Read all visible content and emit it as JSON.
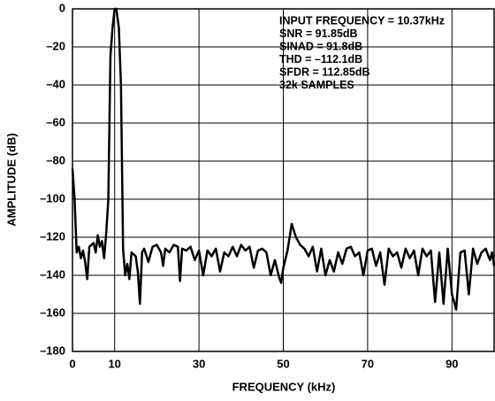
{
  "chart_data": {
    "type": "line",
    "xlabel": "FREQUENCY (kHz)",
    "ylabel": "AMPLITUDE (dB)",
    "annotations": [
      "INPUT FREQUENCY = 10.37kHz",
      "SNR = 91.85dB",
      "SINAD = 91.8dB",
      "THD = –112.1dB",
      "SFDR = 112.85dB",
      "32k SAMPLES"
    ],
    "xlim": [
      0,
      100
    ],
    "ylim": [
      -180,
      0
    ],
    "xticks": [
      0,
      10,
      30,
      50,
      70,
      90
    ],
    "yticks": [
      0,
      {
        "value": -20,
        "label": "–20"
      },
      {
        "value": -40,
        "label": "–40"
      },
      {
        "value": -60,
        "label": "–60"
      },
      {
        "value": -80,
        "label": "–80"
      },
      {
        "value": -100,
        "label": "–100"
      },
      {
        "value": -120,
        "label": "–120"
      },
      {
        "value": -140,
        "label": "–140"
      },
      {
        "value": -160,
        "label": "–160"
      },
      {
        "value": -180,
        "label": "–180"
      }
    ],
    "grid": true,
    "color": "#000000",
    "x": [
      0,
      0.5,
      1,
      1.5,
      2,
      2.5,
      3,
      3.5,
      4,
      5,
      5.5,
      6,
      6.5,
      7,
      7.5,
      8,
      8.5,
      9,
      9.5,
      10,
      10.4,
      11,
      11.5,
      12,
      12.5,
      13,
      13.5,
      14,
      15,
      15.5,
      16,
      16.5,
      17,
      18,
      19,
      20,
      21,
      21.5,
      22,
      23,
      24,
      25,
      25.5,
      26,
      27,
      28,
      29,
      30,
      31,
      32,
      33,
      34,
      35,
      36,
      37,
      38,
      39,
      40,
      41,
      42,
      43,
      44,
      45,
      46,
      47,
      48,
      49,
      49.5,
      50,
      51,
      52,
      53,
      54,
      55,
      56,
      57,
      58,
      59,
      60,
      61,
      62,
      63,
      64,
      65,
      66,
      67,
      68,
      69,
      70,
      71,
      72,
      73,
      74,
      75,
      76,
      77,
      78,
      79,
      80,
      81,
      82,
      83,
      84,
      85,
      86,
      87,
      88,
      89,
      90,
      91,
      92,
      93,
      94,
      95,
      96,
      97,
      98,
      99,
      99.5,
      100
    ],
    "values": [
      -84,
      -100,
      -128,
      -125,
      -131,
      -127,
      -133,
      -142,
      -125,
      -123,
      -128,
      -119,
      -125,
      -122,
      -131,
      -118,
      -100,
      -25,
      -10,
      0,
      0,
      -10,
      -40,
      -126,
      -140,
      -134,
      -142,
      -128,
      -130,
      -138,
      -155,
      -128,
      -126,
      -133,
      -125,
      -124,
      -128,
      -135,
      -126,
      -128,
      -124,
      -125,
      -143,
      -126,
      -127,
      -125,
      -132,
      -127,
      -140,
      -127,
      -130,
      -126,
      -138,
      -128,
      -130,
      -125,
      -130,
      -124,
      -127,
      -125,
      -136,
      -127,
      -126,
      -128,
      -140,
      -132,
      -141,
      -144,
      -136,
      -127,
      -113,
      -120,
      -124,
      -126,
      -130,
      -125,
      -138,
      -126,
      -140,
      -132,
      -138,
      -128,
      -134,
      -126,
      -125,
      -130,
      -128,
      -140,
      -127,
      -126,
      -135,
      -128,
      -145,
      -126,
      -130,
      -128,
      -136,
      -126,
      -131,
      -127,
      -140,
      -126,
      -130,
      -127,
      -154,
      -128,
      -155,
      -126,
      -150,
      -158,
      -128,
      -127,
      -150,
      -126,
      -134,
      -128,
      -126,
      -132,
      -128,
      -135
    ]
  }
}
